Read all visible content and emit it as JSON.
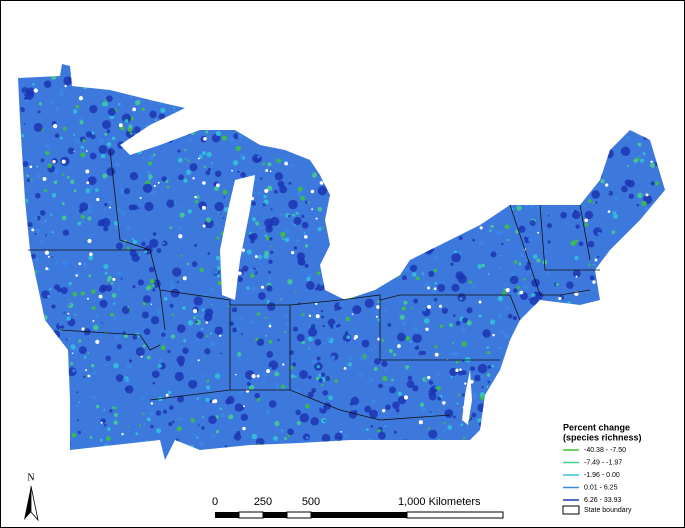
{
  "legend": {
    "title": "Percent change",
    "subtitle": "(species richness)",
    "items": [
      {
        "label": "-40.38 - -7.50",
        "color": "#3cc33c"
      },
      {
        "label": "-7.49 - -1.97",
        "color": "#45cf8f"
      },
      {
        "label": "-1.96 - 0.00",
        "color": "#33c4dc"
      },
      {
        "label": "0.01 - 6.25",
        "color": "#3b86e6"
      },
      {
        "label": "6.26 - 33.93",
        "color": "#1b35b3"
      }
    ],
    "boundary_label": "State boundary"
  },
  "scale_bar": {
    "labels": [
      "0",
      "250",
      "500",
      "1,000 Kilometers"
    ]
  },
  "north_arrow": {
    "label": "N"
  }
}
